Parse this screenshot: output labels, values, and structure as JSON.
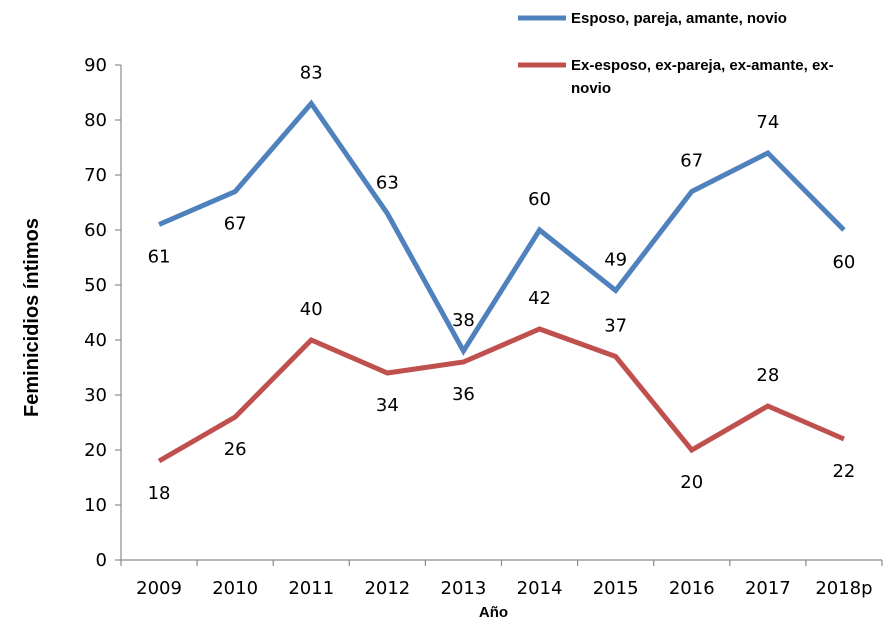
{
  "chart_data": {
    "type": "line",
    "title": "",
    "xlabel": "Año",
    "ylabel": "Feminicidios íntimos",
    "categories": [
      "2009",
      "2010",
      "2011",
      "2012",
      "2013",
      "2014",
      "2015",
      "2016",
      "2017",
      "2018p"
    ],
    "ylim": [
      0,
      90
    ],
    "yticks": [
      "0",
      "10",
      "20",
      "30",
      "40",
      "50",
      "60",
      "70",
      "80",
      "90"
    ],
    "grid": false,
    "legend_position": "top-right",
    "series": [
      {
        "name": "Esposo, pareja, amante, novio",
        "color": "#4F81BD",
        "values": [
          61,
          67,
          83,
          63,
          38,
          60,
          49,
          67,
          74,
          60
        ]
      },
      {
        "name": "Ex-esposo, ex-pareja, ex-amante, ex-novio",
        "color": "#C0504D",
        "values": [
          18,
          26,
          40,
          34,
          36,
          42,
          37,
          20,
          28,
          22
        ]
      }
    ],
    "legend_lines": [
      [
        "Esposo, pareja, amante, novio"
      ],
      [
        "Ex-esposo, ex-pareja, ex-amante, ex-",
        "novio"
      ]
    ]
  }
}
